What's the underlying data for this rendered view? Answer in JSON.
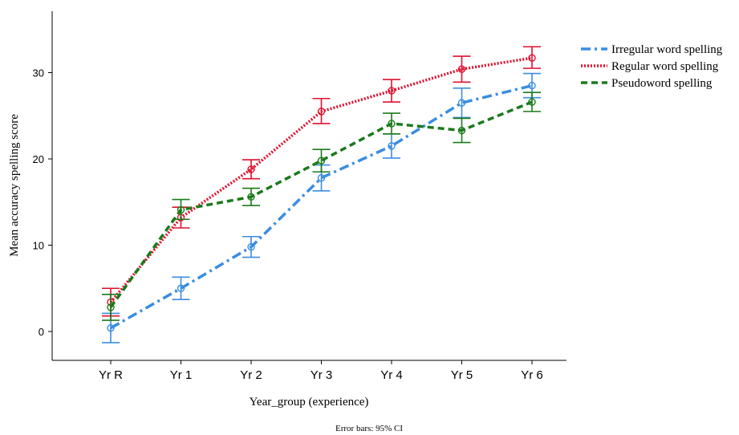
{
  "chart_data": {
    "type": "line",
    "categories": [
      "Yr R",
      "Yr 1",
      "Yr 2",
      "Yr 3",
      "Yr 4",
      "Yr 5",
      "Yr 6"
    ],
    "xlabel": "Year_group (experience)",
    "ylabel": "Mean accuracy spelling score",
    "yticks": [
      0,
      10,
      20,
      30
    ],
    "ylim": [
      -1.5,
      36.5
    ],
    "grid": false,
    "legend_position": "top-right",
    "footnote": "Error bars: 95% CI",
    "series": [
      {
        "name": "Irregular word spelling",
        "color": "#3a8de0",
        "dash": "dash-dot",
        "values": [
          0.4,
          5.0,
          9.8,
          17.8,
          21.5,
          26.5,
          28.5
        ],
        "ci_low": [
          -1.3,
          3.7,
          8.6,
          16.3,
          20.1,
          24.8,
          27.1
        ],
        "ci_high": [
          2.1,
          6.3,
          11.0,
          19.3,
          22.9,
          28.2,
          29.9
        ]
      },
      {
        "name": "Regular word spelling",
        "color": "#e0102f",
        "dash": "dotted",
        "values": [
          3.4,
          13.2,
          18.8,
          25.5,
          27.9,
          30.4,
          31.7
        ],
        "ci_low": [
          1.8,
          12.0,
          17.7,
          24.1,
          26.6,
          28.9,
          30.5
        ],
        "ci_high": [
          5.0,
          14.4,
          19.9,
          27.0,
          29.2,
          31.9,
          33.0
        ]
      },
      {
        "name": "Pseudoword spelling",
        "color": "#1b7a1b",
        "dash": "dashed",
        "values": [
          2.8,
          14.1,
          15.6,
          19.8,
          24.1,
          23.3,
          26.6
        ],
        "ci_low": [
          1.3,
          13.0,
          14.6,
          18.5,
          22.9,
          21.9,
          25.5
        ],
        "ci_high": [
          4.3,
          15.3,
          16.6,
          21.1,
          25.3,
          24.7,
          27.7
        ]
      }
    ]
  }
}
